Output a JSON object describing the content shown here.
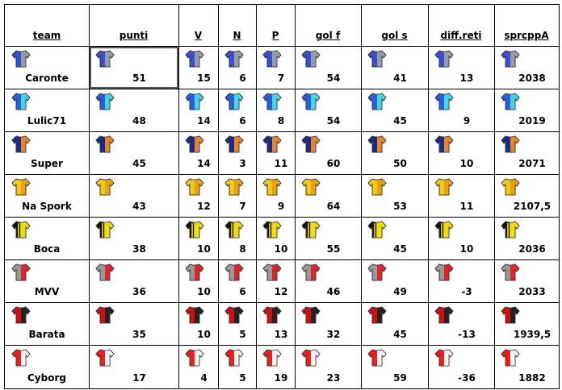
{
  "table": {
    "header": [
      "team",
      "punti",
      "V",
      "N",
      "P",
      "gol f",
      "gol s",
      "diff.reti",
      "sprcppA"
    ],
    "rows": [
      [
        "Caronte",
        51,
        15,
        6,
        7,
        54,
        41,
        13,
        2038
      ],
      [
        "Lulic71",
        48,
        14,
        6,
        8,
        54,
        45,
        9,
        2019
      ],
      [
        "Super",
        45,
        14,
        3,
        11,
        60,
        50,
        10,
        2071
      ],
      [
        "Na Spork",
        43,
        12,
        7,
        9,
        64,
        53,
        11,
        "2107,5"
      ],
      [
        "Boca",
        38,
        10,
        8,
        10,
        55,
        45,
        10,
        2036
      ],
      [
        "MVV",
        36,
        10,
        6,
        12,
        46,
        49,
        -3,
        2033
      ],
      [
        "Barata",
        35,
        10,
        5,
        13,
        32,
        45,
        -13,
        "1939,5"
      ],
      [
        "Cyborg",
        17,
        4,
        5,
        19,
        23,
        59,
        -36,
        1882
      ]
    ]
  }
}
